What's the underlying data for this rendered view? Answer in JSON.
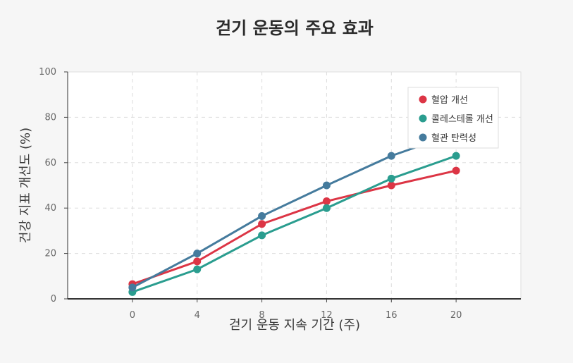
{
  "chart_data": {
    "type": "line",
    "title": "걷기 운동의 주요 효과",
    "xlabel": "걷기 운동 지속 기간 (주)",
    "ylabel": "건강 지표 개선도 (%)",
    "x": [
      0,
      4,
      8,
      12,
      16,
      20
    ],
    "xticks": [
      "0",
      "4",
      "8",
      "12",
      "16",
      "20"
    ],
    "yticks": [
      "0",
      "20",
      "40",
      "60",
      "80",
      "100"
    ],
    "ylim": [
      0,
      100
    ],
    "xlim": [
      -4,
      24
    ],
    "grid": true,
    "legend_position": "top-right",
    "series": [
      {
        "name": "혈압 개선",
        "color": "#dc3545",
        "values": [
          6.5,
          16.5,
          33,
          43,
          50,
          56.5
        ]
      },
      {
        "name": "콜레스테롤 개선",
        "color": "#2a9d8f",
        "values": [
          3,
          13,
          28,
          40,
          53,
          63
        ]
      },
      {
        "name": "혈관 탄력성",
        "color": "#457b9d",
        "values": [
          5,
          20,
          36.5,
          50,
          63,
          73
        ]
      }
    ]
  }
}
